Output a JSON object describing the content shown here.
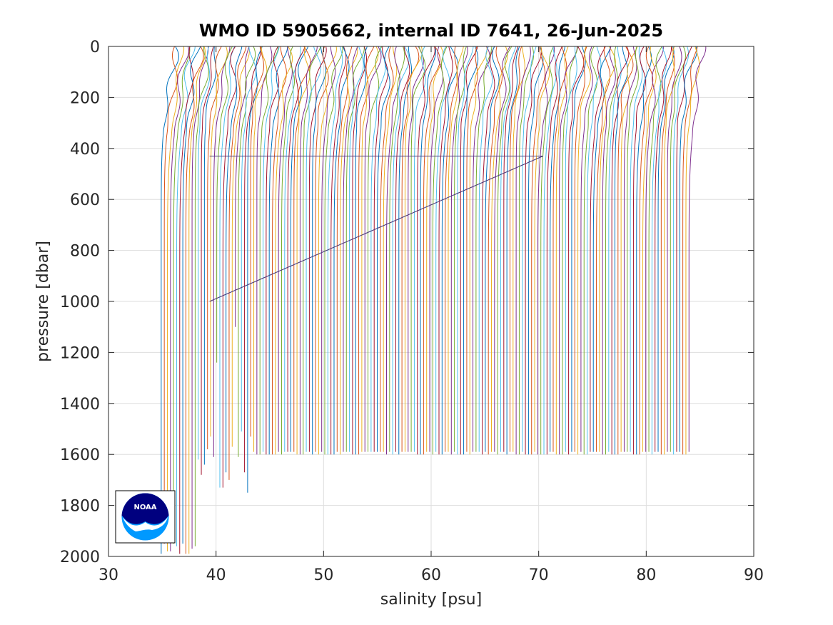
{
  "chart_data": {
    "type": "line",
    "title": "WMO ID 5905662, internal ID 7641, 26-Jun-2025",
    "xlabel": "salinity [psu]",
    "ylabel": "pressure [dbar]",
    "xlim": [
      30,
      90
    ],
    "ylim": [
      0,
      2000
    ],
    "y_reversed": true,
    "grid": true,
    "xticks": [
      "30",
      "40",
      "50",
      "60",
      "70",
      "80",
      "90"
    ],
    "yticks": [
      "0",
      "200",
      "400",
      "600",
      "800",
      "1000",
      "1200",
      "1400",
      "1600",
      "1800",
      "2000"
    ],
    "profile_count": 172,
    "first_profile": {
      "surface_salinity": 36.1,
      "deep_salinity": 34.9,
      "max_pressure": 2000
    },
    "last_profile": {
      "surface_salinity": 85.2,
      "deep_salinity": 84.1,
      "max_pressure": 1600
    },
    "offset_per_profile": 0.287,
    "anomalous_profile": {
      "pressure": [
        1000,
        430,
        430
      ],
      "salinity": [
        39.4,
        70.4,
        39.4
      ]
    },
    "series_colors": [
      "#0072bd",
      "#d95319",
      "#edb120",
      "#7e2f8e",
      "#77ac30",
      "#4dbeee",
      "#a2142f"
    ]
  },
  "logo": {
    "name": "NOAA",
    "text": "NOAA",
    "colors": {
      "navy": "#00007f",
      "blue": "#0099ff",
      "white": "#ffffff"
    }
  }
}
